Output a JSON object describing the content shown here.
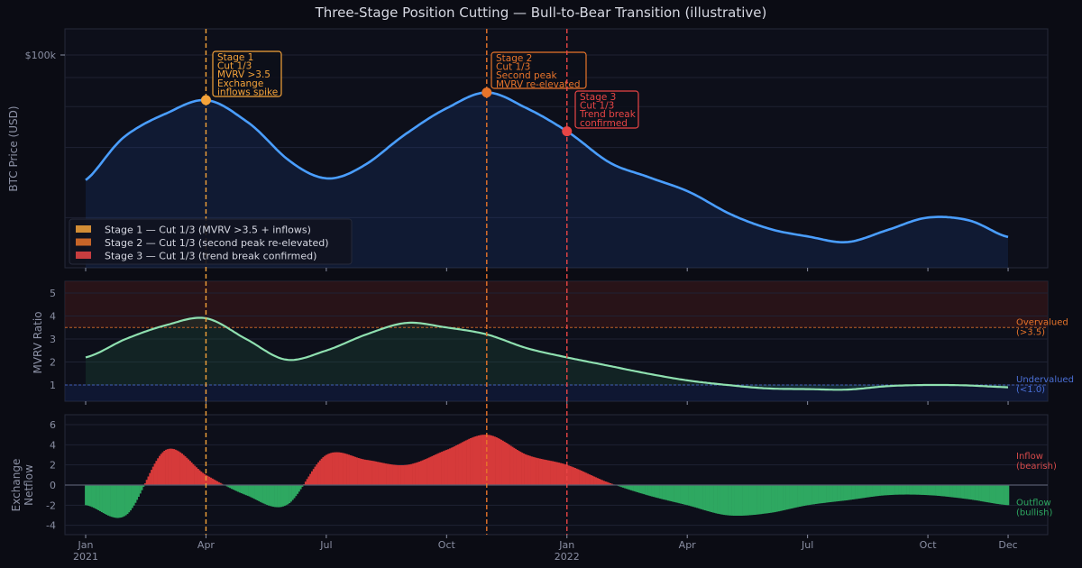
{
  "chart_data": {
    "type": "line",
    "title": "Three-Stage Position Cutting — Bull-to-Bear Transition  (illustrative)",
    "x": [
      "2021-01",
      "2021-02",
      "2021-03",
      "2021-04",
      "2021-05",
      "2021-06",
      "2021-07",
      "2021-08",
      "2021-09",
      "2021-10",
      "2021-11",
      "2021-12",
      "2022-01",
      "2022-02",
      "2022-03",
      "2022-04",
      "2022-05",
      "2022-06",
      "2022-07",
      "2022-08",
      "2022-09",
      "2022-10",
      "2022-11",
      "2022-12"
    ],
    "x_ticks": [
      {
        "month_index": 0,
        "label": "Jan",
        "sub": "2021"
      },
      {
        "month_index": 3,
        "label": "Apr",
        "sub": ""
      },
      {
        "month_index": 6,
        "label": "Jul",
        "sub": ""
      },
      {
        "month_index": 9,
        "label": "Oct",
        "sub": ""
      },
      {
        "month_index": 12,
        "label": "Jan",
        "sub": "2022"
      },
      {
        "month_index": 15,
        "label": "Apr",
        "sub": ""
      },
      {
        "month_index": 18,
        "label": "Jul",
        "sub": ""
      },
      {
        "month_index": 21,
        "label": "Oct",
        "sub": ""
      },
      {
        "month_index": 23,
        "label": "Dec",
        "sub": ""
      }
    ],
    "panels": [
      {
        "id": "price",
        "ylabel": "BTC Price (USD)",
        "yscale": "log",
        "ylim_usd_k": [
          12,
          129
        ],
        "y_tick_labels": [
          {
            "value_k": 100,
            "label": "$100k"
          }
        ],
        "y_grid_k": [
          80,
          60,
          40,
          20
        ],
        "grid": true,
        "series": [
          {
            "values_usd_k": [
              29,
              45,
              56,
              64,
              52,
              36,
              29.5,
              34,
              46,
              59,
              69,
              59,
              47,
              35,
              30,
              26,
              21,
              18,
              16.6,
              15.7,
              17.7,
              20,
              19.5,
              16.5
            ],
            "color": "#4a9eff"
          }
        ]
      },
      {
        "id": "mvrv",
        "ylabel": "MVRV Ratio",
        "ylim": [
          0.3,
          5.5
        ],
        "y_ticks": [
          1,
          2,
          3,
          4,
          5
        ],
        "grid": true,
        "series": [
          {
            "values": [
              2.2,
              3.0,
              3.6,
              3.9,
              3.0,
              2.1,
              2.5,
              3.2,
              3.7,
              3.5,
              3.2,
              2.6,
              2.2,
              1.85,
              1.5,
              1.2,
              1.0,
              0.85,
              0.82,
              0.8,
              0.95,
              1.0,
              0.98,
              0.9
            ],
            "color": "#8fe0b0"
          }
        ],
        "thresholds": [
          {
            "value": 3.5,
            "label": "Overvalued",
            "sub": "(>3.5)",
            "color": "#e8742a"
          },
          {
            "value": 1.0,
            "label": "Undervalued",
            "sub": "(<1.0)",
            "color": "#4a6fd6"
          }
        ]
      },
      {
        "id": "netflow",
        "type": "bar",
        "ylabel": "Exchange",
        "ylabel2": "Netflow",
        "ylim": [
          -4.9,
          7
        ],
        "y_ticks": [
          -4,
          -2,
          0,
          2,
          4,
          6
        ],
        "grid": true,
        "series": [
          {
            "values": [
              -2,
              -3,
              3.5,
              1,
              -1,
              -2,
              3,
              2.5,
              2.0,
              3.5,
              5,
              3,
              2,
              0.3,
              -1,
              -2,
              -3,
              -2.8,
              -2,
              -1.5,
              -1,
              -1,
              -1.4,
              -2
            ]
          }
        ],
        "labels": [
          {
            "label": "Inflow",
            "sub": "(bearish)",
            "color": "#d64a4a"
          },
          {
            "label": "Outflow",
            "sub": "(bullish)",
            "color": "#2ea861"
          }
        ],
        "colors": {
          "positive": "#d63a3a",
          "negative": "#2ea861"
        }
      }
    ],
    "stages": [
      {
        "month_index": 3,
        "color": "#f5a33a",
        "lines": [
          "Stage 1",
          "Cut 1/3",
          "MVRV >3.5",
          "Exchange",
          "inflows spike"
        ],
        "legend": "Stage 1 — Cut 1/3 (MVRV >3.5 + inflows)"
      },
      {
        "month_index": 10,
        "color": "#e8742a",
        "lines": [
          "Stage 2",
          "Cut 1/3",
          "Second peak",
          "MVRV re-elevated"
        ],
        "legend": "Stage 2 — Cut 1/3 (second peak re-elevated)"
      },
      {
        "month_index": 12,
        "color": "#e84545",
        "lines": [
          "Stage 3",
          "Cut 1/3",
          "Trend break",
          "confirmed"
        ],
        "legend": "Stage 3 — Cut 1/3 (trend break confirmed)"
      }
    ],
    "legend_position": "lower-left"
  }
}
